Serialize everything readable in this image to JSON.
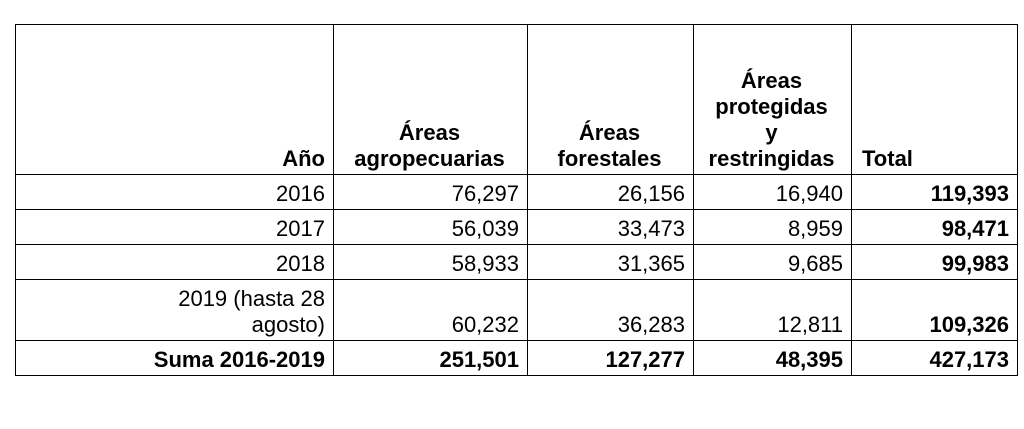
{
  "table": {
    "headers": {
      "year": "Año",
      "agro": [
        "Áreas",
        "agropecuarias"
      ],
      "forest": [
        "Áreas",
        "forestales"
      ],
      "protected": [
        "Áreas",
        "protegidas",
        "y",
        "restringidas"
      ],
      "total": "Total"
    },
    "rows": [
      {
        "year": [
          "2016"
        ],
        "agro": "76,297",
        "forest": "26,156",
        "protected": "16,940",
        "total": "119,393"
      },
      {
        "year": [
          "2017"
        ],
        "agro": "56,039",
        "forest": "33,473",
        "protected": "8,959",
        "total": "98,471"
      },
      {
        "year": [
          "2018"
        ],
        "agro": "58,933",
        "forest": "31,365",
        "protected": "9,685",
        "total": "99,983"
      },
      {
        "year": [
          "2019 (hasta 28",
          "agosto)"
        ],
        "agro": "60,232",
        "forest": "36,283",
        "protected": "12,811",
        "total": "109,326"
      }
    ],
    "sum": {
      "label": "Suma 2016-2019",
      "agro": "251,501",
      "forest": "127,277",
      "protected": "48,395",
      "total": "427,173"
    }
  }
}
